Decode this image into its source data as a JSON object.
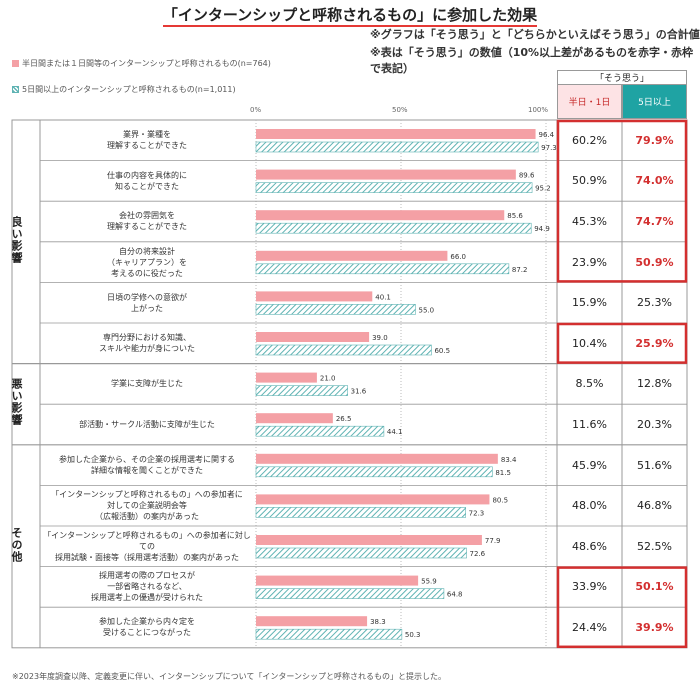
{
  "title": "「インターンシップと呼称されるもの」に参加した効果",
  "notes": [
    "※グラフは「そう思う」と「どちらかといえばそう思う」の合計値",
    "※表は「そう思う」の数値（10%以上差があるものを赤字・赤枠で表記）"
  ],
  "footnote": "※2023年度調査以降、定義変更に伴い、インターンシップについて「インターンシップと呼称されるもの」と提示した。",
  "table_header": {
    "group": "「そう思う」",
    "col1": "半日・1日",
    "col2": "5日以上"
  },
  "categories": [
    {
      "label": "良い影響",
      "rows": [
        0,
        5
      ]
    },
    {
      "label": "悪い影響",
      "rows": [
        6,
        7
      ]
    },
    {
      "label": "その他",
      "rows": [
        8,
        12
      ]
    }
  ],
  "colors": {
    "short": "#f4a0a5",
    "long": "#5fb3b3",
    "highlight": "#d32f2f",
    "col1_bg": "#fde3e5",
    "col2_bg": "#1fa3a3"
  },
  "chart_data": {
    "type": "bar",
    "orientation": "horizontal",
    "xlim": [
      0,
      100
    ],
    "xticks": [
      "0%",
      "50%",
      "100%"
    ],
    "series": [
      {
        "name": "半日間または１日間等のインターンシップと呼称されるもの(n=764)",
        "values": [
          96.4,
          89.6,
          85.6,
          66.0,
          40.1,
          39.0,
          21.0,
          26.5,
          83.4,
          80.5,
          77.9,
          55.9,
          38.3
        ]
      },
      {
        "name": "5日間以上のインターンシップと呼称されるもの(n=1,011)",
        "values": [
          97.3,
          95.2,
          94.9,
          87.2,
          55.0,
          60.5,
          31.6,
          44.1,
          81.5,
          72.3,
          72.6,
          64.8,
          50.3
        ]
      }
    ],
    "categories": [
      [
        "業界・業種を",
        "理解することができた"
      ],
      [
        "仕事の内容を具体的に",
        "知ることができた"
      ],
      [
        "会社の雰囲気を",
        "理解することができた"
      ],
      [
        "自分の将来設計",
        "（キャリアプラン）を",
        "考えるのに役だった"
      ],
      [
        "日頃の学修への意欲が",
        "上がった"
      ],
      [
        "専門分野における知識、",
        "スキルや能力が身についた"
      ],
      [
        "学業に支障が生じた"
      ],
      [
        "部活動・サークル活動に支障が生じた"
      ],
      [
        "参加した企業から、その企業の採用選考に関する",
        "詳細な情報を聞くことができた"
      ],
      [
        "「インターンシップと呼称されるもの」への参加者に",
        "対しての企業説明会等",
        "（広報活動）の案内があった"
      ],
      [
        "「インターンシップと呼称されるもの」への参加者に対しての",
        "採用試験・面接等（採用選考活動）の案内があった"
      ],
      [
        "採用選考の際のプロセスが",
        "一部省略されるなど、",
        "採用選考上の優遇が受けられた"
      ],
      [
        "参加した企業から内々定を",
        "受けることにつながった"
      ]
    ],
    "table": {
      "short": [
        "60.2%",
        "50.9%",
        "45.3%",
        "23.9%",
        "15.9%",
        "10.4%",
        "8.5%",
        "11.6%",
        "45.9%",
        "48.0%",
        "48.6%",
        "33.9%",
        "24.4%"
      ],
      "long": [
        "79.9%",
        "74.0%",
        "74.7%",
        "50.9%",
        "25.3%",
        "25.9%",
        "12.8%",
        "20.3%",
        "51.6%",
        "46.8%",
        "52.5%",
        "50.1%",
        "39.9%"
      ],
      "highlighted": [
        true,
        true,
        true,
        true,
        false,
        true,
        false,
        false,
        false,
        false,
        false,
        true,
        true
      ]
    }
  }
}
